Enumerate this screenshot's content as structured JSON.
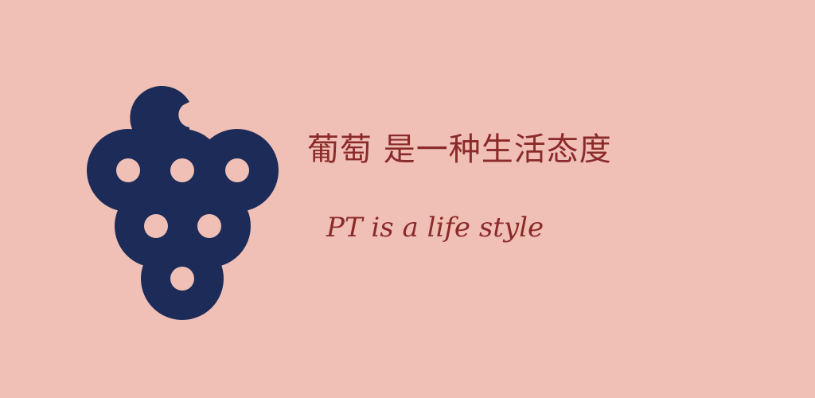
{
  "banner": {
    "background_color": "#f0c0b6",
    "logo": {
      "icon": "grape-cluster-icon",
      "color": "#1c2b57"
    },
    "headline": "葡萄  是一种生活态度",
    "tagline": "PT is a life style",
    "text_color": "#8b2a2a"
  }
}
